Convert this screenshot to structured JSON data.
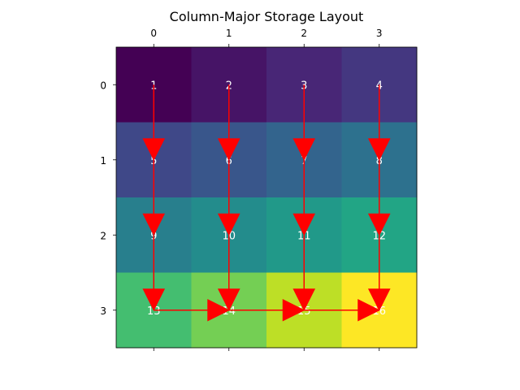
{
  "chart_data": {
    "type": "heatmap",
    "title": "Column-Major Storage Layout",
    "colormap": "viridis",
    "x_tick_labels": [
      "0",
      "1",
      "2",
      "3"
    ],
    "y_tick_labels": [
      "0",
      "1",
      "2",
      "3"
    ],
    "x_ticks_position": "top-and-bottom",
    "values": [
      [
        1,
        2,
        3,
        4
      ],
      [
        5,
        6,
        7,
        8
      ],
      [
        9,
        10,
        11,
        12
      ],
      [
        13,
        14,
        15,
        16
      ]
    ],
    "value_range": [
      1,
      16
    ],
    "cell_label_color": "#ffffff",
    "arrow_color": "#ff0000",
    "arrows": [
      {
        "from": [
          0,
          0
        ],
        "to": [
          1,
          0
        ]
      },
      {
        "from": [
          1,
          0
        ],
        "to": [
          2,
          0
        ]
      },
      {
        "from": [
          2,
          0
        ],
        "to": [
          3,
          0
        ]
      },
      {
        "from": [
          0,
          1
        ],
        "to": [
          1,
          1
        ]
      },
      {
        "from": [
          1,
          1
        ],
        "to": [
          2,
          1
        ]
      },
      {
        "from": [
          2,
          1
        ],
        "to": [
          3,
          1
        ]
      },
      {
        "from": [
          0,
          2
        ],
        "to": [
          1,
          2
        ]
      },
      {
        "from": [
          1,
          2
        ],
        "to": [
          2,
          2
        ]
      },
      {
        "from": [
          2,
          2
        ],
        "to": [
          3,
          2
        ]
      },
      {
        "from": [
          0,
          3
        ],
        "to": [
          1,
          3
        ]
      },
      {
        "from": [
          1,
          3
        ],
        "to": [
          2,
          3
        ]
      },
      {
        "from": [
          2,
          3
        ],
        "to": [
          3,
          3
        ]
      },
      {
        "from": [
          3,
          0
        ],
        "to": [
          3,
          1
        ]
      },
      {
        "from": [
          3,
          1
        ],
        "to": [
          3,
          2
        ]
      },
      {
        "from": [
          3,
          2
        ],
        "to": [
          3,
          3
        ]
      }
    ]
  }
}
